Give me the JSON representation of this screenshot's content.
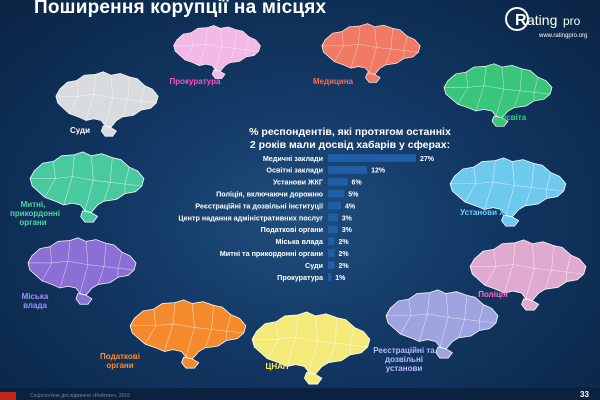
{
  "header": {
    "title": "Поширення корупції на місцях",
    "logo_text": "Rating",
    "logo_suffix": "pro",
    "logo_url": "www.ratingpro.org"
  },
  "maps": [
    {
      "id": "prokuratura",
      "label": "Прокуратура",
      "color": "#f2b8e6",
      "label_color": "#ff4fc4"
    },
    {
      "id": "medytsyna",
      "label": "Медицина",
      "color": "#f07a63",
      "label_color": "#ff6a4d"
    },
    {
      "id": "osvita",
      "label": "Освіта",
      "color": "#39c57a",
      "label_color": "#37d07d"
    },
    {
      "id": "sudy",
      "label": "Суди",
      "color": "#d9dcdf",
      "label_color": "#ffffff"
    },
    {
      "id": "mytni",
      "label": "Митні, прикордонні органи",
      "color": "#49c9a0",
      "label_color": "#4fd6a6"
    },
    {
      "id": "ustanovy-zhkg",
      "label": "Установи ЖКГ",
      "color": "#6ec9ef",
      "label_color": "#6fd0ff"
    },
    {
      "id": "miska-vlada",
      "label": "Міська влада",
      "color": "#8c6fd4",
      "label_color": "#a78cff"
    },
    {
      "id": "politsiia",
      "label": "Поліція",
      "color": "#e0a9cf",
      "label_color": "#ff6cc9"
    },
    {
      "id": "podatkovi",
      "label": "Податкові органи",
      "color": "#f48a2c",
      "label_color": "#ff8d2a"
    },
    {
      "id": "tsnap",
      "label": "ЦНАП",
      "color": "#f4ea79",
      "label_color": "#fff04a"
    },
    {
      "id": "reiestratsiini",
      "label": "Реєстраційні та дозвільні установи",
      "color": "#9fa3e0",
      "label_color": "#b7bcff"
    }
  ],
  "chart_data": {
    "type": "bar",
    "orientation": "horizontal",
    "subtitle_line1": "% респондентів, які протягом останніх",
    "subtitle_line2": "2 років мали досвід хабарів у сферах:",
    "categories": [
      "Медичні заклади",
      "Освітні заклади",
      "Установи ЖКГ",
      "Поліція, включаючи дорожню",
      "Реєстраційні та дозвільні інституції",
      "Центр надання адміністративних послуг",
      "Податкові органи",
      "Міська влада",
      "Митні та прикордонні органи",
      "Суди",
      "Прокуратура"
    ],
    "values": [
      27,
      12,
      6,
      5,
      4,
      3,
      3,
      2,
      2,
      2,
      1
    ],
    "value_labels": [
      "27%",
      "12%",
      "6%",
      "5%",
      "4%",
      "3%",
      "3%",
      "2%",
      "2%",
      "2%",
      "1%"
    ],
    "xlim": [
      0,
      27
    ],
    "bar_color": "#1f5fa8",
    "label_color": "#ffffff",
    "grid": false,
    "legend": "none"
  },
  "footer": {
    "text": "Соціологічне дослідження «Рейтинг», 2016",
    "page_number": "33"
  }
}
